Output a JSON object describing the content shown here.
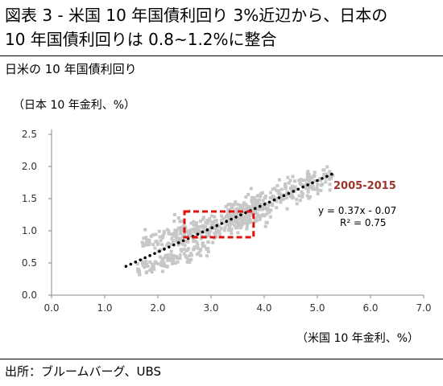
{
  "chart_data": {
    "type": "scatter",
    "title": "図表 3 - 米国 10 年国債利回り 3%近辺から、日本の\n10 年国債利回りは 0.8~1.2%に整合",
    "subtitle": "日米の 10 年国債利回り",
    "ylabel": "（日本 10 年金利、%）",
    "xlabel": "（米国 10 年金利、%）",
    "source": "出所：ブルームバーグ、UBS",
    "xlim": [
      0,
      7
    ],
    "ylim": [
      0,
      2.5
    ],
    "xticks": [
      "0.0",
      "1.0",
      "2.0",
      "3.0",
      "4.0",
      "5.0",
      "6.0",
      "7.0"
    ],
    "yticks": [
      "0.0",
      "0.5",
      "1.0",
      "1.5",
      "2.0",
      "2.5"
    ],
    "grid": false,
    "point_color": "#c7c7c7",
    "trendline": {
      "slope": 0.37,
      "intercept": -0.07,
      "x_range": [
        1.4,
        5.3
      ],
      "style": "dotted",
      "color": "#000000"
    },
    "annotation": {
      "label": "2005-2015",
      "label_color": "#a0342a",
      "equation": "y = 0.37x - 0.07",
      "r2": "R² = 0.75"
    },
    "highlight_box": {
      "x_range": [
        2.5,
        3.8
      ],
      "y_range": [
        0.9,
        1.3
      ],
      "color": "#e01010",
      "style": "dashed"
    },
    "point_clusters": [
      {
        "x_range": [
          3.3,
          5.3
        ],
        "center": [
          4.5,
          1.6
        ],
        "slope": 0.3,
        "spread": 0.1,
        "count": 260
      },
      {
        "x_range": [
          2.3,
          4.1
        ],
        "center": [
          3.2,
          1.15
        ],
        "slope": 0.18,
        "spread": 0.1,
        "count": 180
      },
      {
        "x_range": [
          1.7,
          3.2
        ],
        "center": [
          2.4,
          0.92
        ],
        "slope": 0.1,
        "spread": 0.08,
        "count": 120
      },
      {
        "x_range": [
          1.6,
          3.0
        ],
        "center": [
          2.3,
          0.58
        ],
        "slope": 0.25,
        "spread": 0.07,
        "count": 110
      }
    ]
  }
}
